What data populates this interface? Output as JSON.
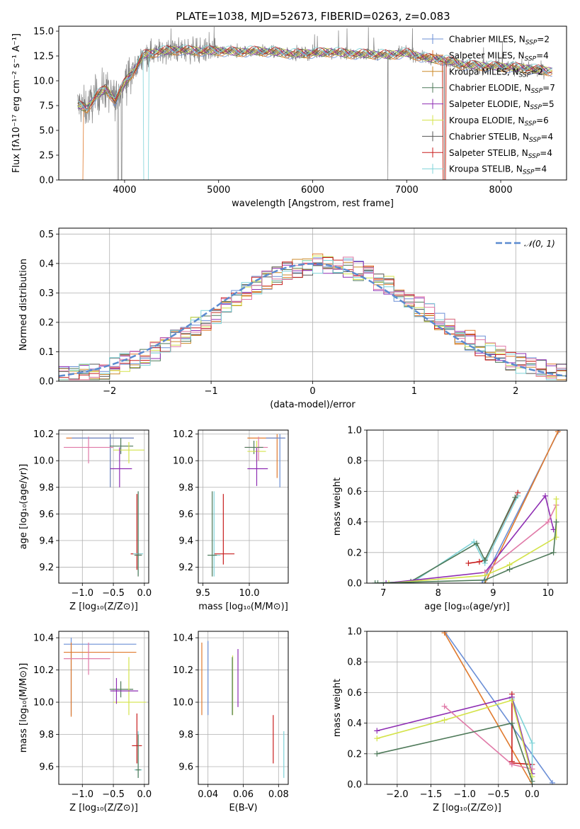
{
  "figure": {
    "title": "PLATE=1038, MJD=52673, FIBERID=0263, z=0.083"
  },
  "chart_data": [
    {
      "id": "spectrum",
      "type": "line",
      "xlabel": "wavelength [Angstrom, rest frame]",
      "ylabel": "Flux [fλ10⁻¹⁷ erg cm⁻² s⁻¹ A⁻¹]",
      "xlim": [
        3300,
        8700
      ],
      "ylim": [
        0,
        15.5
      ],
      "xticks": [
        4000,
        5000,
        6000,
        7000,
        8000
      ],
      "xtick_labels": [
        "4000",
        "5000",
        "6000",
        "7000",
        "8000"
      ],
      "yticks": [
        0,
        2.5,
        5,
        7.5,
        10,
        12.5,
        15
      ],
      "ytick_labels": [
        "0.0",
        "2.5",
        "5.0",
        "7.5",
        "10.0",
        "12.5",
        "15.0"
      ],
      "grid": false,
      "legend_position": "right",
      "series": [
        {
          "name": "Chabrier MILES, N",
          "sub": "SSP",
          "suffix": "=2",
          "color": "#6b8fd6"
        },
        {
          "name": "Salpeter MILES, N",
          "sub": "SSP",
          "suffix": "=4",
          "color": "#e07a2e"
        },
        {
          "name": "Kroupa MILES, N",
          "sub": "SSP",
          "suffix": "=2",
          "color": "#cc8a2a"
        },
        {
          "name": "Chabrier ELODIE, N",
          "sub": "SSP",
          "suffix": "=7",
          "color": "#4f7a5a"
        },
        {
          "name": "Salpeter ELODIE, N",
          "sub": "SSP",
          "suffix": "=5",
          "color": "#8e2db3"
        },
        {
          "name": "Kroupa ELODIE, N",
          "sub": "SSP",
          "suffix": "=6",
          "color": "#d4e34a"
        },
        {
          "name": "Chabrier STELIB, N",
          "sub": "SSP",
          "suffix": "=4",
          "color": "#555555"
        },
        {
          "name": "Salpeter STELIB, N",
          "sub": "SSP",
          "suffix": "=4",
          "color": "#c81e1e"
        },
        {
          "name": "Kroupa STELIB, N",
          "sub": "SSP",
          "suffix": "=4",
          "color": "#7fd3d8"
        }
      ],
      "continuum": {
        "x": [
          3500,
          3600,
          3700,
          3800,
          3900,
          4000,
          4100,
          4200,
          4400,
          4600,
          4800,
          5000,
          5200,
          5400,
          5600,
          5800,
          6000,
          6200,
          6400,
          6600,
          6800,
          7000,
          7200,
          7400,
          7600,
          7800,
          8000,
          8200,
          8400,
          8500
        ],
        "y": [
          7.6,
          7.2,
          8.5,
          9.2,
          8.0,
          9.8,
          11.0,
          12.6,
          13.0,
          13.1,
          13.0,
          13.0,
          12.9,
          13.0,
          12.9,
          12.7,
          12.8,
          12.9,
          12.7,
          12.7,
          12.6,
          12.8,
          12.3,
          12.1,
          11.6,
          11.5,
          11.4,
          11.3,
          11.1,
          11.0
        ]
      }
    },
    {
      "id": "residuals",
      "type": "histogram",
      "xlabel": "(data-model)/error",
      "ylabel": "Normed distribution",
      "xlim": [
        -2.5,
        2.5
      ],
      "ylim": [
        0,
        0.52
      ],
      "xticks": [
        -2,
        -1,
        0,
        1,
        2
      ],
      "xtick_labels": [
        "−2",
        "−1",
        "0",
        "1",
        "2"
      ],
      "yticks": [
        0,
        0.1,
        0.2,
        0.3,
        0.4,
        0.5
      ],
      "ytick_labels": [
        "0.0",
        "0.1",
        "0.2",
        "0.3",
        "0.4",
        "0.5"
      ],
      "grid": true,
      "legend": {
        "label": "𝒩(0, 1)",
        "position": "top-right",
        "color": "#5b8bd0"
      },
      "gaussian": {
        "mu": 0,
        "sigma": 1
      },
      "bin_width": 0.1
    },
    {
      "id": "age-vs-Z",
      "type": "errorbar",
      "xlabel": "Z [log₁₀(Z/Z⊙)]",
      "ylabel": "age  [log₁₀(age/yr)]",
      "xlim": [
        -1.38,
        0.07
      ],
      "ylim": [
        9.08,
        10.23
      ],
      "xticks": [
        -1.0,
        -0.5,
        0.0
      ],
      "xtick_labels": [
        "−1.0",
        "−0.5",
        "0.0"
      ],
      "yticks": [
        9.2,
        9.4,
        9.6,
        9.8,
        10.0,
        10.2
      ],
      "ytick_labels": [
        "9.2",
        "9.4",
        "9.6",
        "9.8",
        "10.0",
        "10.2"
      ],
      "grid": true,
      "points": [
        {
          "x": -0.55,
          "y": 10.17,
          "xerr": [
            0.71,
            0.38
          ],
          "yerr": [
            0.37,
            0.03
          ],
          "color": "#e07a2e"
        },
        {
          "x": -0.55,
          "y": 10.17,
          "xerr": [
            0.62,
            0.38
          ],
          "yerr": [
            0.37,
            0.03
          ],
          "color": "#6b8fd6"
        },
        {
          "x": -0.9,
          "y": 10.1,
          "xerr": [
            0.4,
            0.4
          ],
          "yerr": [
            0.12,
            0.08
          ],
          "color": "#e07aa8"
        },
        {
          "x": -0.38,
          "y": 10.11,
          "xerr": [
            0.18,
            0.2
          ],
          "yerr": [
            0.06,
            0.06
          ],
          "color": "#4f7a5a"
        },
        {
          "x": -0.25,
          "y": 10.08,
          "xerr": [
            0.25,
            0.25
          ],
          "yerr": [
            0.1,
            0.06
          ],
          "color": "#d4e34a"
        },
        {
          "x": -0.4,
          "y": 9.94,
          "xerr": [
            0.15,
            0.2
          ],
          "yerr": [
            0.14,
            0.16
          ],
          "color": "#8e2db3"
        },
        {
          "x": -0.12,
          "y": 9.3,
          "xerr": [
            0.1,
            0.08
          ],
          "yerr": [
            0.12,
            0.45
          ],
          "color": "#c81e1e"
        },
        {
          "x": -0.1,
          "y": 9.3,
          "xerr": [
            0.08,
            0.08
          ],
          "yerr": [
            0.16,
            0.47
          ],
          "color": "#7fd3d8"
        },
        {
          "x": -0.1,
          "y": 9.29,
          "xerr": [
            0.06,
            0.06
          ],
          "yerr": [
            0.16,
            0.48
          ],
          "color": "#4f7a5a"
        }
      ]
    },
    {
      "id": "age-vs-mass",
      "type": "errorbar",
      "xlabel": "mass [log₁₀(M/M⊙)]",
      "ylabel": "",
      "xlim": [
        9.45,
        10.42
      ],
      "ylim": [
        9.08,
        10.23
      ],
      "xticks": [
        9.5,
        10.0
      ],
      "xtick_labels": [
        "9.5",
        "10.0"
      ],
      "yticks": [
        9.2,
        9.4,
        9.6,
        9.8,
        10.0,
        10.2
      ],
      "ytick_labels": [
        "9.2",
        "9.4",
        "9.6",
        "9.8",
        "10.0",
        "10.2"
      ],
      "grid": true,
      "points": [
        {
          "x": 10.3,
          "y": 10.17,
          "xerr": [
            0.32,
            0.08
          ],
          "yerr": [
            0.3,
            0.03
          ],
          "color": "#e07a2e"
        },
        {
          "x": 10.33,
          "y": 10.17,
          "xerr": [
            0.15,
            0.06
          ],
          "yerr": [
            0.37,
            0.03
          ],
          "color": "#6b8fd6"
        },
        {
          "x": 10.1,
          "y": 10.1,
          "xerr": [
            0.15,
            0.1
          ],
          "yerr": [
            0.1,
            0.08
          ],
          "color": "#e07aa8"
        },
        {
          "x": 10.05,
          "y": 10.1,
          "xerr": [
            0.1,
            0.1
          ],
          "yerr": [
            0.05,
            0.05
          ],
          "color": "#4f7a5a"
        },
        {
          "x": 10.08,
          "y": 10.07,
          "xerr": [
            0.1,
            0.1
          ],
          "yerr": [
            0.08,
            0.08
          ],
          "color": "#d4e34a"
        },
        {
          "x": 10.08,
          "y": 9.94,
          "xerr": [
            0.1,
            0.12
          ],
          "yerr": [
            0.13,
            0.16
          ],
          "color": "#8e2db3"
        },
        {
          "x": 9.72,
          "y": 9.3,
          "xerr": [
            0.1,
            0.12
          ],
          "yerr": [
            0.08,
            0.45
          ],
          "color": "#c81e1e"
        },
        {
          "x": 9.62,
          "y": 9.29,
          "xerr": [
            0.07,
            0.07
          ],
          "yerr": [
            0.16,
            0.48
          ],
          "color": "#7fd3d8"
        },
        {
          "x": 9.6,
          "y": 9.29,
          "xerr": [
            0.05,
            0.05
          ],
          "yerr": [
            0.16,
            0.48
          ],
          "color": "#4f7a5a"
        }
      ]
    },
    {
      "id": "weight-vs-age",
      "type": "line",
      "xlabel": "age  [log₁₀(age/yr)]",
      "ylabel": "mass weight",
      "xlim": [
        6.7,
        10.35
      ],
      "ylim": [
        0,
        1.0
      ],
      "xticks": [
        7,
        8,
        9,
        10
      ],
      "xtick_labels": [
        "7",
        "8",
        "9",
        "10"
      ],
      "yticks": [
        0,
        0.2,
        0.4,
        0.6,
        0.8,
        1.0
      ],
      "ytick_labels": [
        "0.0",
        "0.2",
        "0.4",
        "0.6",
        "0.8",
        "1.0"
      ],
      "grid": true,
      "series": [
        {
          "color": "#6b8fd6",
          "x": [
            8.8,
            10.2
          ],
          "y": [
            0.0,
            1.0
          ]
        },
        {
          "color": "#e07a2e",
          "x": [
            8.85,
            10.18
          ],
          "y": [
            0.0,
            0.99
          ]
        },
        {
          "color": "#c81e1e",
          "x": [
            8.55,
            8.75,
            8.85,
            9.45
          ],
          "y": [
            0.13,
            0.14,
            0.15,
            0.59
          ]
        },
        {
          "color": "#7fd3d8",
          "x": [
            6.85,
            7.55,
            8.65,
            8.85,
            9.45
          ],
          "y": [
            0.0,
            0.01,
            0.27,
            0.13,
            0.57
          ]
        },
        {
          "color": "#4f7a5a",
          "x": [
            6.85,
            7.5,
            8.7,
            8.85,
            9.4
          ],
          "y": [
            0.0,
            0.01,
            0.26,
            0.15,
            0.56
          ]
        },
        {
          "color": "#8e2db3",
          "x": [
            7.05,
            8.85,
            9.95,
            10.1
          ],
          "y": [
            0.0,
            0.07,
            0.57,
            0.35
          ]
        },
        {
          "color": "#e07aa8",
          "x": [
            8.85,
            10.0,
            10.15
          ],
          "y": [
            0.07,
            0.4,
            0.51
          ]
        },
        {
          "color": "#d4e34a",
          "x": [
            7.1,
            8.85,
            9.3,
            10.15,
            10.15
          ],
          "y": [
            0.0,
            0.05,
            0.12,
            0.3,
            0.55
          ]
        },
        {
          "color": "#4f7a5a",
          "x": [
            6.9,
            8.85,
            9.3,
            10.1,
            10.15
          ],
          "y": [
            0.0,
            0.02,
            0.09,
            0.2,
            0.4
          ]
        }
      ]
    },
    {
      "id": "mass-vs-Z",
      "type": "errorbar",
      "xlabel": "Z [log₁₀(Z/Z⊙)]",
      "ylabel": "mass [log₁₀(M/M⊙)]",
      "xlim": [
        -1.38,
        0.07
      ],
      "ylim": [
        9.49,
        10.44
      ],
      "xticks": [
        -1.0,
        -0.5,
        0.0
      ],
      "xtick_labels": [
        "−1.0",
        "−0.5",
        "0.0"
      ],
      "yticks": [
        9.6,
        9.8,
        10.0,
        10.2,
        10.4
      ],
      "ytick_labels": [
        "9.6",
        "9.8",
        "10.0",
        "10.2",
        "10.4"
      ],
      "grid": true,
      "points": [
        {
          "x": -1.18,
          "y": 10.36,
          "xerr": [
            0.12,
            1.05
          ],
          "yerr": [
            0.44,
            0.04
          ],
          "color": "#6b8fd6"
        },
        {
          "x": -1.18,
          "y": 10.31,
          "xerr": [
            0.12,
            1.05
          ],
          "yerr": [
            0.4,
            0.06
          ],
          "color": "#e07a2e"
        },
        {
          "x": -0.9,
          "y": 10.27,
          "xerr": [
            0.4,
            0.35
          ],
          "yerr": [
            0.1,
            0.1
          ],
          "color": "#e07aa8"
        },
        {
          "x": -0.38,
          "y": 10.08,
          "xerr": [
            0.18,
            0.2
          ],
          "yerr": [
            0.05,
            0.05
          ],
          "color": "#4f7a5a"
        },
        {
          "x": -0.25,
          "y": 10.0,
          "xerr": [
            0.25,
            0.28
          ],
          "yerr": [
            0.08,
            0.28
          ],
          "color": "#d4e34a"
        },
        {
          "x": -0.45,
          "y": 10.07,
          "xerr": [
            0.1,
            0.35
          ],
          "yerr": [
            0.08,
            0.08
          ],
          "color": "#8e2db3"
        },
        {
          "x": -0.12,
          "y": 9.73,
          "xerr": [
            0.08,
            0.08
          ],
          "yerr": [
            0.11,
            0.2
          ],
          "color": "#c81e1e"
        },
        {
          "x": -0.1,
          "y": 9.58,
          "xerr": [
            0.06,
            0.06
          ],
          "yerr": [
            0.05,
            0.24
          ],
          "color": "#7fd3d8"
        },
        {
          "x": -0.1,
          "y": 9.58,
          "xerr": [
            0.04,
            0.04
          ],
          "yerr": [
            0.05,
            0.22
          ],
          "color": "#4f7a5a"
        }
      ]
    },
    {
      "id": "mass-vs-EBV",
      "type": "errorbar",
      "xlabel": "E(B-V)",
      "ylabel": "",
      "xlim": [
        0.0345,
        0.0855
      ],
      "ylim": [
        9.49,
        10.44
      ],
      "xticks": [
        0.04,
        0.06,
        0.08
      ],
      "xtick_labels": [
        "0.04",
        "0.06",
        "0.08"
      ],
      "yticks": [
        9.6,
        9.8,
        10.0,
        10.2,
        10.4
      ],
      "ytick_labels": [
        "9.6",
        "9.8",
        "10.0",
        "10.2",
        "10.4"
      ],
      "grid": true,
      "points": [
        {
          "x": 0.0365,
          "y": 10.15,
          "xerr": [
            0,
            0
          ],
          "yerr": [
            0.23,
            0.22
          ],
          "color": "#e07a2e"
        },
        {
          "x": 0.04,
          "y": 10.16,
          "xerr": [
            0,
            0
          ],
          "yerr": [
            0.24,
            0.22
          ],
          "color": "#6b8fd6"
        },
        {
          "x": 0.054,
          "y": 10.11,
          "xerr": [
            0,
            0
          ],
          "yerr": [
            0.19,
            0.18
          ],
          "color": "#d4e34a"
        },
        {
          "x": 0.0538,
          "y": 10.1,
          "xerr": [
            0,
            0
          ],
          "yerr": [
            0.18,
            0.18
          ],
          "color": "#4f7a5a"
        },
        {
          "x": 0.057,
          "y": 10.15,
          "xerr": [
            0,
            0
          ],
          "yerr": [
            0.18,
            0.18
          ],
          "color": "#8e2db3"
        },
        {
          "x": 0.077,
          "y": 9.77,
          "xerr": [
            0,
            0
          ],
          "yerr": [
            0.15,
            0.15
          ],
          "color": "#c81e1e"
        },
        {
          "x": 0.083,
          "y": 9.68,
          "xerr": [
            0,
            0
          ],
          "yerr": [
            0.15,
            0.14
          ],
          "color": "#7fd3d8"
        }
      ]
    },
    {
      "id": "weight-vs-Z",
      "type": "line",
      "xlabel": "Z [log₁₀(Z/Z⊙)]",
      "ylabel": "mass weight",
      "xlim": [
        -2.45,
        0.52
      ],
      "ylim": [
        0,
        1.0
      ],
      "xticks": [
        -2.0,
        -1.5,
        -1.0,
        -0.5,
        0.0
      ],
      "xtick_labels": [
        "−2.0",
        "−1.5",
        "−1.0",
        "−0.5",
        "0.0"
      ],
      "yticks": [
        0,
        0.2,
        0.4,
        0.6,
        0.8,
        1.0
      ],
      "ytick_labels": [
        "0.0",
        "0.2",
        "0.4",
        "0.6",
        "0.8",
        "1.0"
      ],
      "grid": true,
      "series": [
        {
          "color": "#6b8fd6",
          "x": [
            -1.3,
            0.3
          ],
          "y": [
            1.0,
            0.01
          ]
        },
        {
          "color": "#e07a2e",
          "x": [
            -1.3,
            0.0
          ],
          "y": [
            0.99,
            0.0
          ]
        },
        {
          "color": "#c81e1e",
          "x": [
            -0.3,
            -0.3,
            -0.3,
            0.0
          ],
          "y": [
            0.59,
            0.15,
            0.14,
            0.13
          ]
        },
        {
          "color": "#7fd3d8",
          "x": [
            -0.3,
            0.0,
            0.0
          ],
          "y": [
            0.56,
            0.27,
            0.0
          ]
        },
        {
          "color": "#8e2db3",
          "x": [
            -2.3,
            -0.3,
            0.0
          ],
          "y": [
            0.35,
            0.57,
            0.07
          ]
        },
        {
          "color": "#e07aa8",
          "x": [
            -1.3,
            -0.3,
            0.0
          ],
          "y": [
            0.51,
            0.13,
            0.1
          ]
        },
        {
          "color": "#d4e34a",
          "x": [
            -2.3,
            -1.3,
            -0.3,
            0.0
          ],
          "y": [
            0.3,
            0.42,
            0.55,
            0.05
          ]
        },
        {
          "color": "#4f7a5a",
          "x": [
            -2.3,
            -0.3,
            0.0
          ],
          "y": [
            0.2,
            0.4,
            0.02
          ]
        }
      ]
    }
  ]
}
